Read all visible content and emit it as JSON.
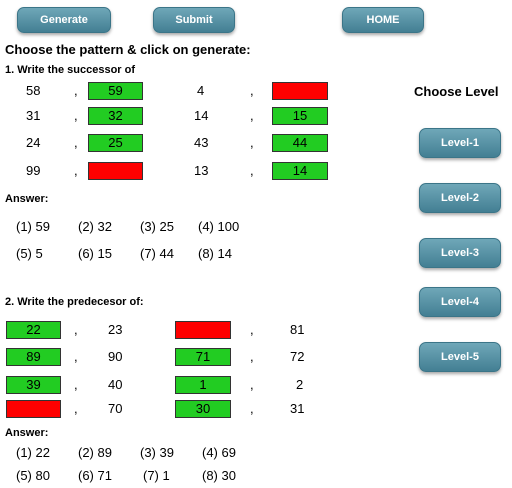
{
  "toolbar": {
    "generate": "Generate",
    "submit": "Submit",
    "home": "HOME"
  },
  "instruction": "Choose the pattern & click on generate:",
  "successor": {
    "title": "1. Write the successor of",
    "rows": [
      {
        "a": "58",
        "a_ans": "59",
        "a_state": "green",
        "b": "4",
        "b_ans": "",
        "b_state": "red"
      },
      {
        "a": "31",
        "a_ans": "32",
        "a_state": "green",
        "b": "14",
        "b_ans": "15",
        "b_state": "green"
      },
      {
        "a": "24",
        "a_ans": "25",
        "a_state": "green",
        "b": "43",
        "b_ans": "44",
        "b_state": "green"
      },
      {
        "a": "99",
        "a_ans": "",
        "a_state": "red",
        "b": "13",
        "b_ans": "14",
        "b_state": "green"
      }
    ],
    "answer_label": "Answer:",
    "answers": [
      "(1) 59",
      "(2) 32",
      "(3) 25",
      "(4) 100",
      "(5) 5",
      "(6) 15",
      "(7) 44",
      "(8) 14"
    ]
  },
  "predecessor": {
    "title": "2. Write the predecesor of:",
    "rows": [
      {
        "a_ans": "22",
        "a_state": "green",
        "a": "23",
        "b_ans": "",
        "b_state": "red",
        "b": "81"
      },
      {
        "a_ans": "89",
        "a_state": "green",
        "a": "90",
        "b_ans": "71",
        "b_state": "green",
        "b": "72"
      },
      {
        "a_ans": "39",
        "a_state": "green",
        "a": "40",
        "b_ans": "1",
        "b_state": "green",
        "b": "2"
      },
      {
        "a_ans": "",
        "a_state": "red",
        "a": "70",
        "b_ans": "30",
        "b_state": "green",
        "b": "31"
      }
    ],
    "answer_label": "Answer:",
    "answers": [
      "(1) 22",
      "(2) 89",
      "(3) 39",
      "(4) 69",
      "(5) 80",
      "(6) 71",
      "(7) 1",
      "(8) 30"
    ]
  },
  "levels": {
    "title": "Choose Level",
    "items": [
      "Level-1",
      "Level-2",
      "Level-3",
      "Level-4",
      "Level-5"
    ]
  },
  "colors": {
    "correct": "#22cc22",
    "wrong": "#ff0000",
    "button": "#5792a5"
  }
}
